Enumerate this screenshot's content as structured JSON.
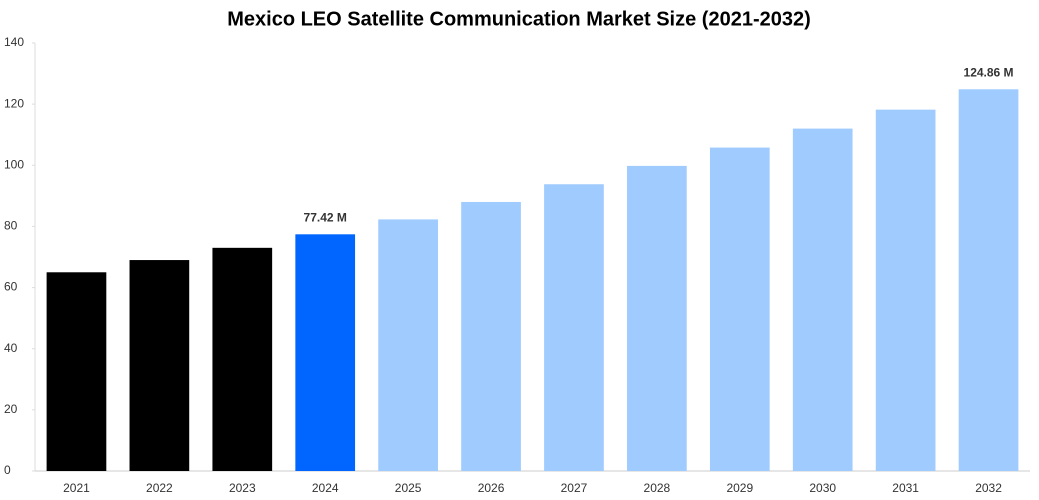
{
  "chart_data": {
    "type": "bar",
    "title": "Mexico LEO Satellite Communication Market Size (2021-2032)",
    "categories": [
      "2021",
      "2022",
      "2023",
      "2024",
      "2025",
      "2026",
      "2027",
      "2028",
      "2029",
      "2030",
      "2031",
      "2032"
    ],
    "values": [
      65,
      69,
      73,
      77.42,
      82.3,
      88,
      93.8,
      99.8,
      105.8,
      112,
      118.2,
      124.86
    ],
    "value_labels": [
      null,
      null,
      null,
      "77.42 M",
      null,
      null,
      null,
      null,
      null,
      null,
      null,
      "124.86 M"
    ],
    "colors": [
      "#000000",
      "#000000",
      "#000000",
      "#0066ff",
      "#a0cbff",
      "#a0cbff",
      "#a0cbff",
      "#a0cbff",
      "#a0cbff",
      "#a0cbff",
      "#a0cbff",
      "#a0cbff"
    ],
    "ylim": [
      0,
      140
    ],
    "yticks": [
      0,
      20,
      40,
      60,
      80,
      100,
      120,
      140
    ],
    "grid": false
  }
}
